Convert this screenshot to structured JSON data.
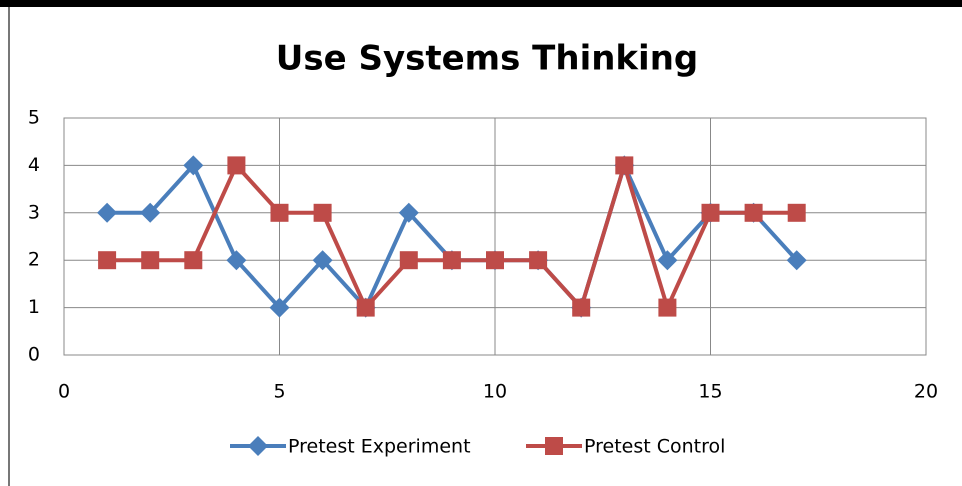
{
  "chart_data": {
    "type": "line",
    "title": "Use Systems Thinking",
    "x": [
      1,
      2,
      3,
      4,
      5,
      6,
      7,
      8,
      9,
      10,
      11,
      12,
      13,
      14,
      15,
      16,
      17
    ],
    "series": [
      {
        "name": "Pretest Experiment",
        "color": "#4a7ebb",
        "marker": "diamond",
        "values": [
          3,
          3,
          4,
          2,
          1,
          2,
          1,
          3,
          2,
          2,
          2,
          1,
          4,
          2,
          3,
          3,
          2
        ]
      },
      {
        "name": "Pretest Control",
        "color": "#be4b48",
        "marker": "square",
        "values": [
          2,
          2,
          2,
          4,
          3,
          3,
          1,
          2,
          2,
          2,
          2,
          1,
          4,
          1,
          3,
          3,
          3
        ]
      }
    ],
    "xlim": [
      0,
      20
    ],
    "xticks": [
      0,
      5,
      10,
      15,
      20
    ],
    "ylim": [
      0,
      5
    ],
    "yticks": [
      0,
      1,
      2,
      3,
      4,
      5
    ],
    "grid": true,
    "legend": "bottom"
  }
}
